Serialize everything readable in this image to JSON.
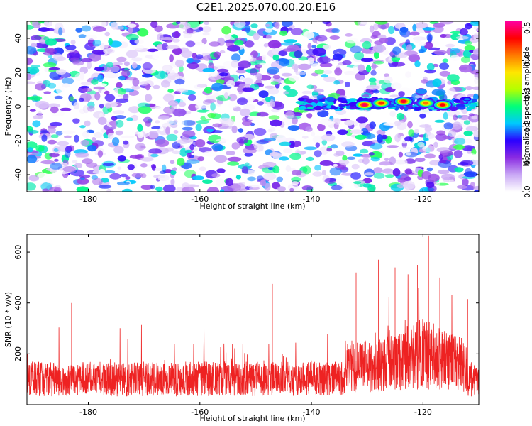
{
  "figure": {
    "title": "C2E1.2025.070.00.20.E16"
  },
  "chart_data": [
    {
      "type": "heatmap",
      "xlabel": "Height of straight line (km)",
      "ylabel": "Frequency (Hz)",
      "xlim": [
        -191,
        -110
      ],
      "ylim": [
        -50,
        50
      ],
      "xticks": [
        -180,
        -160,
        -140,
        -120
      ],
      "yticks": [
        -40,
        -20,
        0,
        20,
        40
      ],
      "colorbar": {
        "label": "Normalized spectral amplitude",
        "range": [
          0.0,
          0.52
        ],
        "ticks": [
          0.0,
          0.1,
          0.2,
          0.3,
          0.4,
          0.5
        ],
        "colors": [
          "#ffffff",
          "#c9a8f5",
          "#8a2be2",
          "#2b00ff",
          "#00c8ff",
          "#00ff7a",
          "#b4ff00",
          "#ffe600",
          "#ff7a00",
          "#ff0000",
          "#ff00a0"
        ]
      },
      "feature": {
        "description": "Bright narrow band near 0 Hz from about -142 km to -111 km, peaks near -130 to -116 km",
        "band_frequency": 1.5,
        "band_x": [
          -142,
          -111
        ],
        "hotspots": [
          {
            "x": -130.5,
            "y": 1.0,
            "value": 0.5
          },
          {
            "x": -127.5,
            "y": 2.0,
            "value": 0.45
          },
          {
            "x": -123.5,
            "y": 3.0,
            "value": 0.48
          },
          {
            "x": -119.5,
            "y": 2.0,
            "value": 0.42
          },
          {
            "x": -116.5,
            "y": 1.0,
            "value": 0.47
          }
        ],
        "background_level": 0.1
      }
    },
    {
      "type": "line",
      "xlabel": "Height of straight line (km)",
      "ylabel": "SNR (10 * v/v)",
      "xlim": [
        -191,
        -110
      ],
      "ylim": [
        0,
        670
      ],
      "xticks": [
        -180,
        -160,
        -140,
        -120
      ],
      "yticks": [
        200,
        400,
        600
      ],
      "series": [
        {
          "color": "#ee2222",
          "description": "Dense noisy SNR trace, baseline ~130 with spikes; elevated between -134 and -112 km",
          "baseline": 130,
          "notable_peaks": [
            {
              "x": -183,
              "y": 400
            },
            {
              "x": -172,
              "y": 470
            },
            {
              "x": -158,
              "y": 420
            },
            {
              "x": -147,
              "y": 475
            },
            {
              "x": -132,
              "y": 520
            },
            {
              "x": -128,
              "y": 570
            },
            {
              "x": -125,
              "y": 540
            },
            {
              "x": -121,
              "y": 550
            },
            {
              "x": -119,
              "y": 665
            },
            {
              "x": -117,
              "y": 500
            },
            {
              "x": -112,
              "y": 415
            }
          ]
        }
      ]
    }
  ]
}
